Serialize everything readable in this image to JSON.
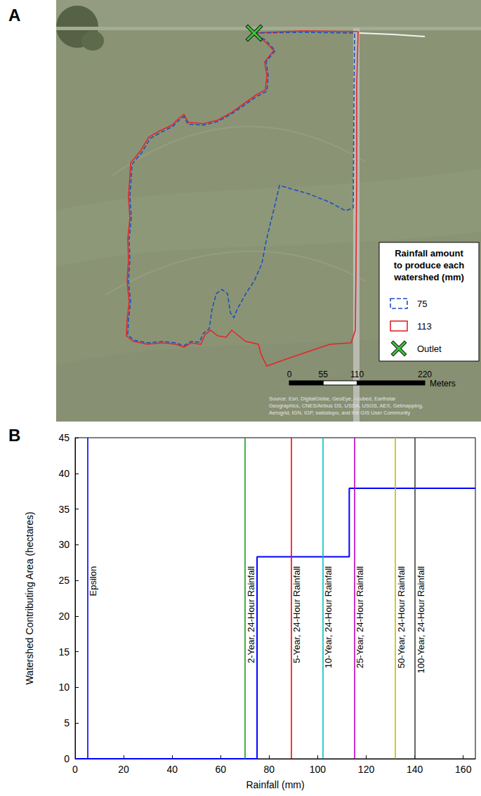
{
  "map": {
    "panel": "A",
    "legend": {
      "title": "Rainfall amount to produce each watershed (mm)",
      "items": [
        {
          "value": 75,
          "color": "#1f4fbf",
          "line_style": "dashed"
        },
        {
          "value": 113,
          "color": "#e3262b",
          "line_style": "solid"
        },
        {
          "label": "Outlet",
          "color": "#3ac43a",
          "marker": "x"
        }
      ]
    },
    "scale_bar": {
      "ticks": [
        0,
        55,
        110,
        220
      ],
      "unit": "Meters"
    },
    "source": "Source: Esri, DigitalGlobe, GeoEye, i-cubed, Earthstar Geographics, CNES/Airbus DS, USDA, USGS, AEX, Getmapping, Aerogrid, IGN, IGP, swisstopo, and the GIS User Community"
  },
  "chart_data": {
    "panel": "B",
    "type": "line",
    "xlabel": "Rainfall (mm)",
    "ylabel": "Watershed Contributing Area (hectares)",
    "xlim": [
      0,
      165
    ],
    "xticks": [
      0,
      20,
      40,
      60,
      80,
      100,
      120,
      140,
      160
    ],
    "ylim": [
      0,
      45
    ],
    "yticks": [
      0,
      5,
      10,
      15,
      20,
      25,
      30,
      35,
      40,
      45
    ],
    "grid": false,
    "series": [
      {
        "type": "step",
        "color": "#0000ff",
        "x": [
          0,
          75,
          113,
          165
        ],
        "values": [
          0,
          28.3,
          37.9,
          37.9
        ]
      }
    ],
    "vlines": [
      {
        "x": 5,
        "label": "Epsilon",
        "color": "#0000ff"
      },
      {
        "x": 70,
        "label": "2-Year, 24-Hour Rainfall",
        "color": "#1a9a1a"
      },
      {
        "x": 89,
        "label": "5-Year, 24-Hour Rainfall",
        "color": "#ff0000"
      },
      {
        "x": 102,
        "label": "10-Year, 24-Hour Rainfall",
        "color": "#00bfbf"
      },
      {
        "x": 115,
        "label": "25-Year, 24-Hour Rainfall",
        "color": "#bf00bf"
      },
      {
        "x": 132,
        "label": "50-Year, 24-Hour Rainfall",
        "color": "#bfbf00"
      },
      {
        "x": 140,
        "label": "100-Year, 24-Hour Rainfall",
        "color": "#404040"
      }
    ]
  }
}
